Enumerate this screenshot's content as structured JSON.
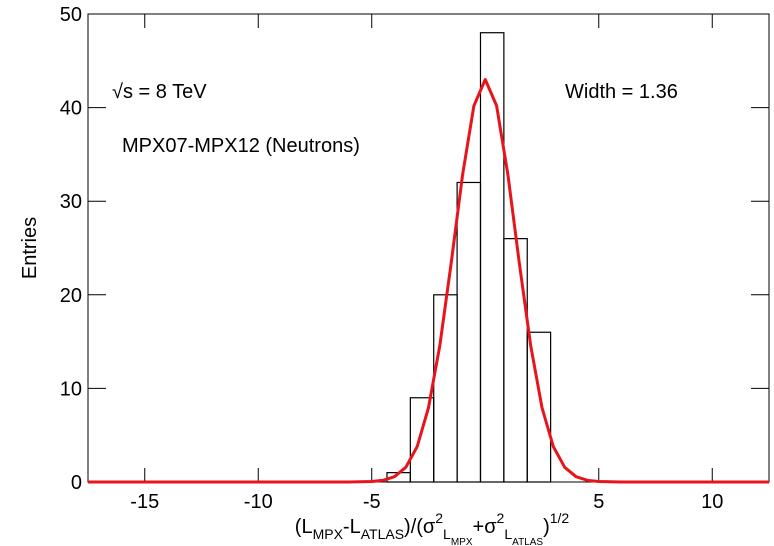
{
  "chart_data": {
    "type": "histogram",
    "ylabel": "Entries",
    "xlabel_parts": [
      {
        "text": "(L",
        "style": "normal"
      },
      {
        "text": "MPX",
        "style": "sub"
      },
      {
        "text": "-L",
        "style": "normal"
      },
      {
        "text": "ATLAS",
        "style": "sub"
      },
      {
        "text": ")/(σ",
        "style": "normal"
      },
      {
        "text": "2",
        "style": "sup"
      },
      {
        "text": "L",
        "style": "sub"
      },
      {
        "text": "MPX",
        "style": "subsub"
      },
      {
        "text": "+σ",
        "style": "normal"
      },
      {
        "text": "2",
        "style": "sup"
      },
      {
        "text": "L",
        "style": "sub"
      },
      {
        "text": "ATLAS",
        "style": "subsub"
      },
      {
        "text": ")",
        "style": "normal"
      },
      {
        "text": "1/2",
        "style": "sup"
      }
    ],
    "annotations": [
      "√s = 8 TeV",
      "MPX07-MPX12 (Neutrons)",
      "Width = 1.36"
    ],
    "bins": [
      -4.33,
      -3.3,
      -2.27,
      -1.24,
      -0.21,
      0.82,
      1.85,
      2.88
    ],
    "values": [
      1,
      9,
      20,
      32,
      48,
      26,
      16
    ],
    "color": "#000000",
    "fit": {
      "color": "#e8141c",
      "x": [
        -17.5,
        -6,
        -5,
        -4.5,
        -4,
        -3.5,
        -3,
        -2.5,
        -2,
        -1.5,
        -1,
        -0.5,
        0,
        0.5,
        1,
        1.5,
        2,
        2.5,
        3,
        3.5,
        4,
        4.5,
        5,
        6,
        12.5
      ],
      "values": [
        0,
        0,
        0.05,
        0.18,
        0.57,
        1.57,
        3.78,
        7.94,
        14.6,
        23.4,
        32.8,
        40.2,
        43,
        40.2,
        32.8,
        23.4,
        14.6,
        7.94,
        3.78,
        1.57,
        0.57,
        0.18,
        0.05,
        0,
        0
      ]
    },
    "xlim": [
      -17.5,
      12.5
    ],
    "ylim": [
      0,
      50
    ],
    "xticks": [
      -15,
      -10,
      -5,
      5,
      10
    ],
    "yticks": [
      0,
      10,
      20,
      30,
      40,
      50
    ]
  }
}
